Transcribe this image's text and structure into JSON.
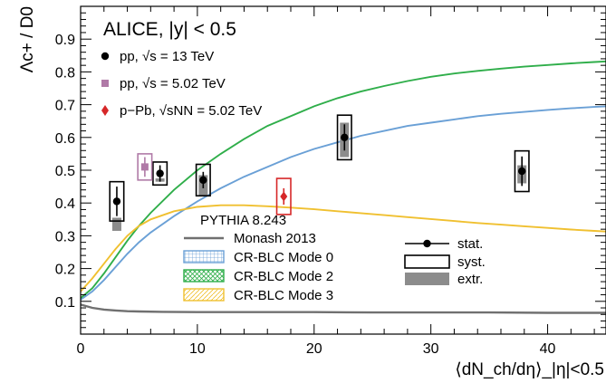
{
  "chart_data": {
    "type": "scatter",
    "header": "ALICE, |y| < 0.5",
    "xlabel": "⟨dN_ch/dη⟩_|η|<0.5",
    "ylabel": "Λc+ / D0",
    "xlim": [
      0,
      45
    ],
    "ylim": [
      0.0,
      1.0
    ],
    "x_ticks": [
      0,
      10,
      20,
      30,
      40
    ],
    "y_ticks": [
      0.1,
      0.2,
      0.3,
      0.4,
      0.5,
      0.6,
      0.7,
      0.8,
      0.9
    ],
    "data_legend": [
      {
        "label": "pp, √s = 13 TeV",
        "color": "#000000",
        "marker": "circle"
      },
      {
        "label": "pp, √s = 5.02 TeV",
        "color": "#b07aa7",
        "marker": "square"
      },
      {
        "label": "p−Pb, √sNN = 5.02 TeV",
        "color": "#d62728",
        "marker": "diamond"
      }
    ],
    "model_title": "PYTHIA 8.243",
    "model_legend": [
      {
        "label": "Monash 2013",
        "color": "#707070",
        "style": "line"
      },
      {
        "label": "CR-BLC Mode 0",
        "color": "#6aa0d6",
        "style": "grid"
      },
      {
        "label": "CR-BLC Mode 2",
        "color": "#2fae4a",
        "style": "cross"
      },
      {
        "label": "CR-BLC Mode 3",
        "color": "#f0c030",
        "style": "hatch"
      }
    ],
    "unc_legend": [
      {
        "label": "stat.",
        "style": "stat"
      },
      {
        "label": "syst.",
        "style": "syst"
      },
      {
        "label": "extr.",
        "style": "extr"
      }
    ],
    "series": [
      {
        "name": "pp, √s = 13 TeV",
        "color": "#000000",
        "marker": "circle",
        "points": [
          {
            "x": 3.1,
            "y": 0.405,
            "stat": 0.045,
            "syst_hw": 0.6,
            "syst": 0.06,
            "extr": [
              0.315,
              0.355
            ]
          },
          {
            "x": 6.8,
            "y": 0.49,
            "stat": 0.025,
            "syst_hw": 0.6,
            "syst": 0.035,
            "extr": [
              0.465,
              0.475
            ]
          },
          {
            "x": 10.5,
            "y": 0.47,
            "stat": 0.025,
            "syst_hw": 0.6,
            "syst": 0.048,
            "extr": [
              0.42,
              0.485
            ]
          },
          {
            "x": 22.6,
            "y": 0.6,
            "stat": 0.04,
            "syst_hw": 0.6,
            "syst": 0.068,
            "extr": [
              0.54,
              0.645
            ]
          },
          {
            "x": 37.8,
            "y": 0.497,
            "stat": 0.045,
            "syst_hw": 0.6,
            "syst": 0.062,
            "extr": [
              0.46,
              0.515
            ]
          }
        ]
      },
      {
        "name": "pp, √s = 5.02 TeV",
        "color": "#b07aa7",
        "marker": "square",
        "points": [
          {
            "x": 5.5,
            "y": 0.51,
            "stat": 0.03,
            "syst_hw": 0.6,
            "syst": 0.04,
            "extr": null
          }
        ]
      },
      {
        "name": "p−Pb, √sNN = 5.02 TeV",
        "color": "#d62728",
        "marker": "diamond",
        "points": [
          {
            "x": 17.4,
            "y": 0.42,
            "stat": 0.025,
            "syst_hw": 0.6,
            "syst": 0.055,
            "extr": null
          }
        ]
      }
    ],
    "models": [
      {
        "name": "Monash 2013",
        "color": "#707070",
        "x": [
          0,
          1,
          2,
          3,
          4,
          5,
          7,
          10,
          15,
          20,
          25,
          30,
          35,
          40,
          45
        ],
        "y": [
          0.09,
          0.08,
          0.075,
          0.072,
          0.07,
          0.069,
          0.068,
          0.067,
          0.067,
          0.067,
          0.066,
          0.066,
          0.066,
          0.065,
          0.065
        ]
      },
      {
        "name": "CR-BLC Mode 0",
        "color": "#6aa0d6",
        "x": [
          0,
          1,
          2,
          3,
          4,
          5,
          6,
          8,
          10,
          12,
          14,
          16,
          18,
          20,
          22,
          24,
          26,
          28,
          30,
          32,
          34,
          36,
          38,
          40,
          42,
          44,
          45
        ],
        "y": [
          0.105,
          0.13,
          0.165,
          0.205,
          0.245,
          0.28,
          0.31,
          0.36,
          0.405,
          0.445,
          0.48,
          0.51,
          0.54,
          0.565,
          0.585,
          0.605,
          0.62,
          0.635,
          0.645,
          0.655,
          0.665,
          0.672,
          0.678,
          0.684,
          0.689,
          0.693,
          0.695
        ]
      },
      {
        "name": "CR-BLC Mode 2",
        "color": "#2fae4a",
        "x": [
          0,
          1,
          2,
          3,
          4,
          5,
          6,
          8,
          10,
          12,
          14,
          16,
          18,
          20,
          22,
          24,
          26,
          28,
          30,
          32,
          34,
          36,
          38,
          40,
          42,
          44,
          45
        ],
        "y": [
          0.11,
          0.14,
          0.185,
          0.235,
          0.285,
          0.33,
          0.37,
          0.44,
          0.5,
          0.55,
          0.595,
          0.635,
          0.665,
          0.695,
          0.72,
          0.74,
          0.757,
          0.772,
          0.785,
          0.795,
          0.803,
          0.81,
          0.816,
          0.821,
          0.826,
          0.83,
          0.832
        ]
      },
      {
        "name": "CR-BLC Mode 3",
        "color": "#f0c030",
        "x": [
          0,
          1,
          2,
          3,
          4,
          5,
          6,
          8,
          10,
          12,
          14,
          16,
          18,
          20,
          22,
          24,
          26,
          28,
          30,
          32,
          34,
          36,
          38,
          40,
          42,
          44,
          45
        ],
        "y": [
          0.13,
          0.17,
          0.215,
          0.26,
          0.3,
          0.33,
          0.35,
          0.375,
          0.388,
          0.393,
          0.393,
          0.39,
          0.386,
          0.381,
          0.375,
          0.369,
          0.363,
          0.357,
          0.351,
          0.345,
          0.339,
          0.334,
          0.329,
          0.324,
          0.319,
          0.315,
          0.313
        ]
      }
    ]
  }
}
